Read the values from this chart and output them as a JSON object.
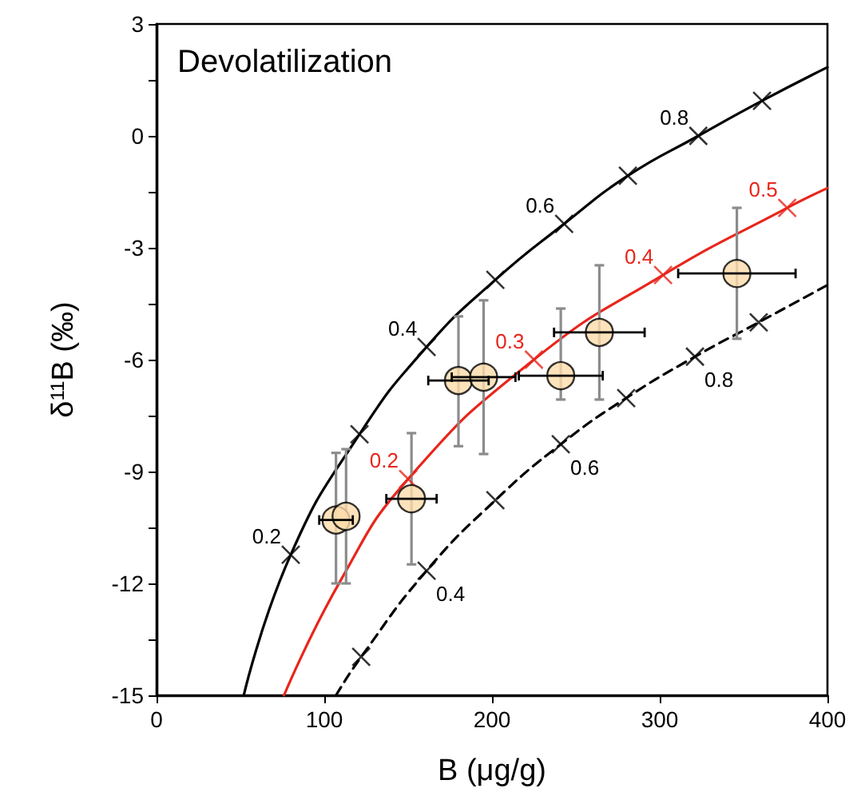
{
  "chart_data": {
    "type": "scatter",
    "title": "Devolatilization",
    "xlabel": "B (μg/g)",
    "ylabel": "δ$^{11}$B (‰)",
    "xlim": [
      0,
      400
    ],
    "xticks": [
      0,
      100,
      200,
      300,
      400
    ],
    "ylim": [
      -15,
      3
    ],
    "yticks": [
      -15,
      -12,
      -9,
      -6,
      -3,
      0,
      3
    ],
    "marker": "circle",
    "annotations": [
      {
        "text": "0.2",
        "x": 80,
        "y": -11.23
      },
      {
        "text": "0.4",
        "x": 161,
        "y": -5.66
      },
      {
        "text": "0.6",
        "x": 243,
        "y": -2.36
      },
      {
        "text": "0.8",
        "x": 323,
        "y": 0
      },
      {
        "text": "0.2",
        "x": 150,
        "y": -9.2
      },
      {
        "text": "0.3",
        "x": 225,
        "y": -6.0
      },
      {
        "text": "0.4",
        "x": 302,
        "y": -3.73
      },
      {
        "text": "0.5",
        "x": 376,
        "y": -1.93
      },
      {
        "text": "0.4",
        "x": 161,
        "y": -11.66
      },
      {
        "text": "0.6",
        "x": 241,
        "y": -8.27
      },
      {
        "text": "0.8",
        "x": 321,
        "y": -5.92
      }
    ],
    "series": [
      {
        "type": "line",
        "color": "#000000",
        "line_style": "solid",
        "marker": "none",
        "x": [
          52,
          80,
          121,
          161,
          202,
          243,
          281,
          323,
          361,
          400
        ],
        "values": [
          -15,
          -11.23,
          -8.0,
          -5.66,
          -3.86,
          -2.36,
          -1.07,
          0,
          0.94,
          1.84
        ]
      },
      {
        "type": "line",
        "color": "#e8261c",
        "line_style": "solid",
        "marker": "none",
        "x": [
          76,
          110,
          150,
          225,
          302,
          376,
          400
        ],
        "values": [
          -15,
          -11.9,
          -9.2,
          -6.0,
          -3.73,
          -1.93,
          -1.4
        ]
      },
      {
        "type": "line",
        "color": "#000000",
        "line_style": "dashed",
        "marker": "none",
        "x": [
          107,
          122,
          161,
          202,
          241,
          280,
          321,
          359,
          400
        ],
        "values": [
          -15,
          -13.97,
          -11.66,
          -9.77,
          -8.27,
          -7.03,
          -5.92,
          -5.0,
          -4.0
        ]
      },
      {
        "type": "scatter",
        "color": "#000000",
        "marker": "cross",
        "x": [
          80,
          121,
          161,
          202,
          243,
          281,
          323,
          361
        ],
        "values": [
          -11.23,
          -8.0,
          -5.66,
          -3.86,
          -2.36,
          -1.07,
          0,
          0.94
        ]
      },
      {
        "type": "scatter",
        "color": "#e8261c",
        "marker": "cross",
        "x": [
          150,
          225,
          302,
          376
        ],
        "values": [
          -9.2,
          -6.0,
          -3.73,
          -1.93
        ]
      },
      {
        "type": "scatter",
        "color": "#000000",
        "marker": "cross",
        "line_style": "dashed",
        "x": [
          122,
          161,
          202,
          241,
          280,
          321,
          359
        ],
        "values": [
          -13.97,
          -11.66,
          -9.77,
          -8.27,
          -7.03,
          -5.92,
          -5.0
        ]
      },
      {
        "color": "#fddcaa",
        "x": [
          107,
          113,
          152,
          180,
          195,
          241,
          264,
          346
        ],
        "values": [
          -10.3,
          -10.2,
          -9.73,
          -6.56,
          -6.47,
          -6.43,
          -5.27,
          -3.69
        ],
        "errors": [
          [
            -12.0,
            -8.5
          ],
          [
            -12.0,
            -8.4
          ],
          [
            -11.49,
            -7.97
          ],
          [
            -8.32,
            -4.84
          ],
          [
            -8.53,
            -4.41
          ],
          [
            -7.07,
            -4.63
          ],
          [
            -7.07,
            -3.47
          ],
          [
            -5.44,
            -1.93
          ]
        ],
        "xerrors": [
          10,
          null,
          15,
          18,
          19,
          25,
          27,
          35
        ]
      }
    ]
  }
}
